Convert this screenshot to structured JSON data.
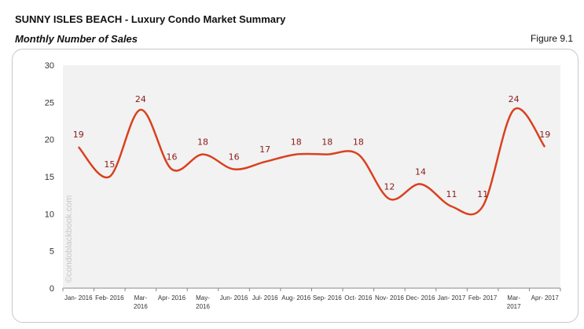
{
  "header": {
    "title": "SUNNY ISLES BEACH - Luxury Condo Market Summary",
    "subtitle": "Monthly Number of Sales",
    "figure": "Figure 9.1"
  },
  "watermark": "©condoblackbook.com",
  "chart_data": {
    "type": "line",
    "categories": [
      "Jan- 2016",
      "Feb- 2016",
      "Mar- 2016",
      "Apr- 2016",
      "May- 2016",
      "Jun- 2016",
      "Jul- 2016",
      "Aug- 2016",
      "Sep- 2016",
      "Oct- 2016",
      "Nov- 2016",
      "Dec- 2016",
      "Jan- 2017",
      "Feb- 2017",
      "Mar- 2017",
      "Apr- 2017"
    ],
    "values": [
      19,
      15,
      24,
      16,
      18,
      16,
      17,
      18,
      18,
      18,
      12,
      14,
      11,
      11,
      24,
      19
    ],
    "ylim": [
      0,
      30
    ],
    "yticks": [
      0,
      5,
      10,
      15,
      20,
      25,
      30
    ],
    "grid": false,
    "line_color": "#d9411e",
    "label_color": "#8b1a1a",
    "plot_bg": "#f2f2f2",
    "smooth": true
  }
}
